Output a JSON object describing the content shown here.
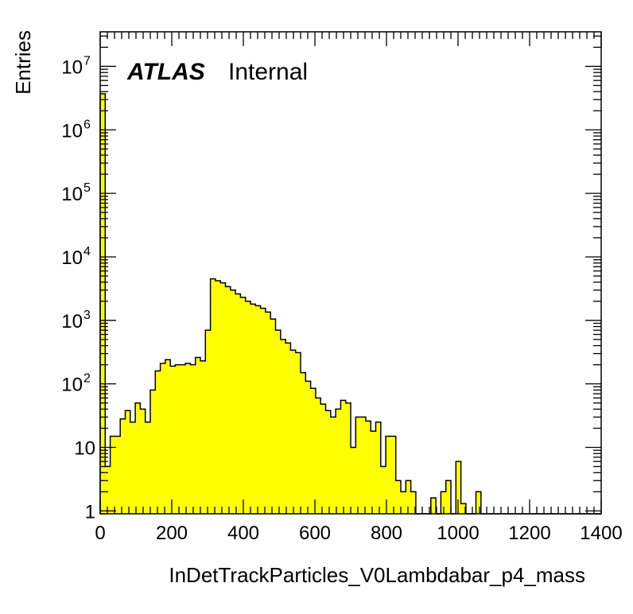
{
  "chart_data": {
    "type": "bar",
    "title": "",
    "xlabel": "InDetTrackParticles_V0Lambdabar_p4_mass",
    "ylabel": "Entries",
    "xlim": [
      0,
      1400
    ],
    "ylim": [
      0.9,
      35000000
    ],
    "log_y": true,
    "bin_width": 14,
    "bins_start": 0,
    "fill_color": "#ffff00",
    "line_color": "#000000",
    "labels": {
      "atlas": "ATLAS",
      "status": "Internal"
    },
    "x_ticks": [
      0,
      200,
      400,
      600,
      800,
      1000,
      1200,
      1400
    ],
    "y_ticks": [
      {
        "value": 1,
        "label": "1",
        "sup": ""
      },
      {
        "value": 10,
        "label": "10",
        "sup": ""
      },
      {
        "value": 100,
        "label": "10",
        "sup": "2"
      },
      {
        "value": 1000,
        "label": "10",
        "sup": "3"
      },
      {
        "value": 10000,
        "label": "10",
        "sup": "4"
      },
      {
        "value": 100000,
        "label": "10",
        "sup": "5"
      },
      {
        "value": 1000000,
        "label": "10",
        "sup": "6"
      },
      {
        "value": 10000000,
        "label": "10",
        "sup": "7"
      }
    ],
    "values": [
      3700000,
      5,
      15,
      15,
      28,
      38,
      25,
      50,
      40,
      25,
      80,
      160,
      210,
      240,
      190,
      200,
      200,
      210,
      200,
      260,
      230,
      700,
      4500,
      4200,
      3900,
      3400,
      3000,
      2600,
      2300,
      2000,
      1800,
      1700,
      1550,
      1350,
      1050,
      700,
      500,
      440,
      340,
      310,
      150,
      110,
      85,
      60,
      48,
      38,
      30,
      40,
      55,
      50,
      10,
      30,
      30,
      26,
      18,
      25,
      5,
      15,
      15,
      3,
      2,
      3,
      2,
      0,
      0,
      0,
      1.6,
      0,
      2,
      3,
      0,
      6,
      1.3,
      0,
      0,
      2,
      0,
      0,
      0,
      0,
      0,
      0,
      0,
      0,
      0,
      0,
      0,
      0,
      0,
      0,
      0,
      0,
      0,
      0,
      0,
      0,
      0,
      0,
      0,
      0
    ]
  }
}
